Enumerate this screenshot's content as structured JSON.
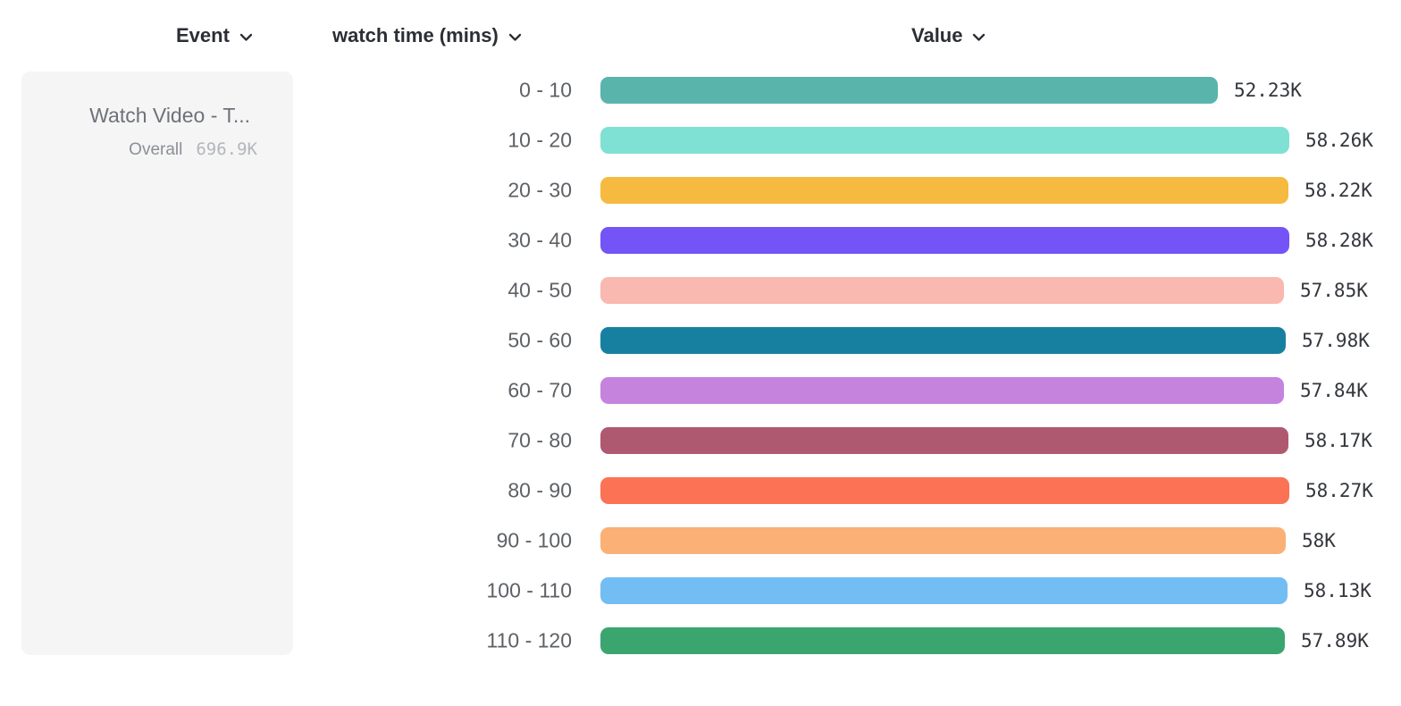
{
  "columns": {
    "event": {
      "label": "Event"
    },
    "breakdown": {
      "label": "watch time (mins)"
    },
    "value": {
      "label": "Value"
    }
  },
  "event_card": {
    "title": "Watch Video - T...",
    "overall_label": "Overall",
    "overall_value": "696.9K"
  },
  "icons": {
    "chevron_color": "#2b2e34"
  },
  "chart_data": {
    "type": "bar",
    "orientation": "horizontal",
    "title": "",
    "xlabel": "Value",
    "ylabel": "watch time (mins)",
    "xlim": [
      0,
      58280
    ],
    "grid": false,
    "categories": [
      "0 - 10",
      "10 - 20",
      "20 - 30",
      "30 - 40",
      "40 - 50",
      "50 - 60",
      "60 - 70",
      "70 - 80",
      "80 - 90",
      "90 - 100",
      "100 - 110",
      "110 - 120"
    ],
    "values": [
      52230,
      58260,
      58220,
      58280,
      57850,
      57980,
      57840,
      58170,
      58270,
      58000,
      58130,
      57890
    ],
    "value_labels": [
      "52.23K",
      "58.26K",
      "58.22K",
      "58.28K",
      "57.85K",
      "57.98K",
      "57.84K",
      "58.17K",
      "58.27K",
      "58K",
      "58.13K",
      "57.89K"
    ],
    "bar_colors": [
      "#59B4AC",
      "#7FE0D4",
      "#F6BA40",
      "#7453F7",
      "#F9B8B0",
      "#1780A1",
      "#C583DE",
      "#AF5971",
      "#FC7254",
      "#FBB076",
      "#72BDF4",
      "#3BA56F"
    ]
  }
}
